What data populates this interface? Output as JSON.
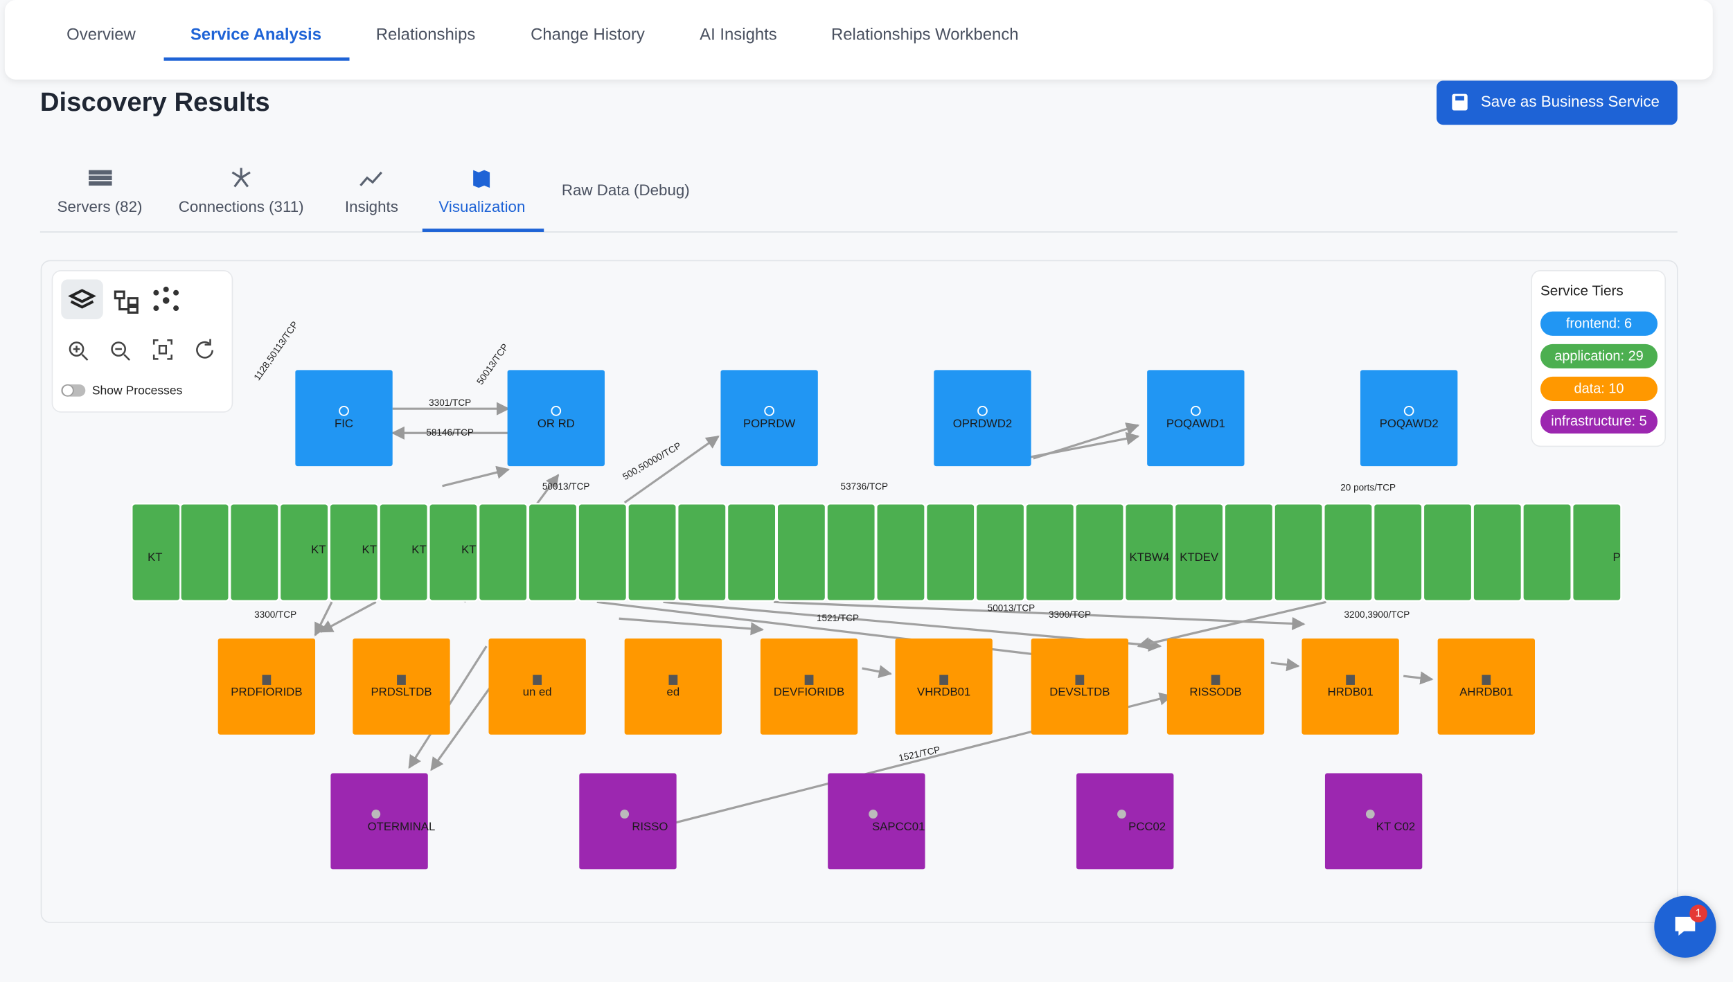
{
  "nav": {
    "tabs": [
      "Overview",
      "Service Analysis",
      "Relationships",
      "Change History",
      "AI Insights",
      "Relationships Workbench"
    ]
  },
  "header": {
    "title": "Discovery Results",
    "button": "Save as Business Service"
  },
  "subtabs": [
    "Servers (82)",
    "Connections (311)",
    "Insights",
    "Visualization",
    "Raw Data (Debug)"
  ],
  "toolbar": {
    "toggle": "Show Processes"
  },
  "legend": {
    "title": "Service Tiers",
    "items": [
      {
        "label": "frontend: 6",
        "color": "#2196f3"
      },
      {
        "label": "application: 29",
        "color": "#4caf50"
      },
      {
        "label": "data: 10",
        "color": "#ff9800"
      },
      {
        "label": "infrastructure: 5",
        "color": "#9c27b0"
      }
    ]
  },
  "nodes": {
    "frontend": [
      "FIC",
      "OR RD",
      "POPRDW",
      "OPRDWD2",
      "POQAWD1",
      "POQAWD2"
    ],
    "application": [
      "KT",
      "KT",
      "KT",
      "KT",
      "KT",
      "KTBW4",
      "KTDEV",
      "P"
    ],
    "data": [
      "PRDFIORIDB",
      "PRDSLTDB",
      "un ed",
      "ed",
      "DEVFIORIDB",
      "VHRDB01",
      "DEVSLTDB",
      "RISSODB",
      "HRDB01",
      "AHRDB01"
    ],
    "infrastructure": [
      "OTERMINAL",
      "RISSO",
      "SAPCC01",
      "PCC02",
      "KT C02"
    ]
  },
  "edges": [
    "3301/TCP",
    "58146/TCP",
    "50013/TCP",
    "53736/TCP",
    "20 ports/TCP",
    "3300/TCP",
    "1521/TCP",
    "50013/TCP",
    "3300/TCP",
    "3200,3900/TCP",
    "1521/TCP",
    "1128,50113/TCP",
    "500,50000/TCP",
    "50013/TCP"
  ],
  "chat": {
    "badge": "1"
  }
}
